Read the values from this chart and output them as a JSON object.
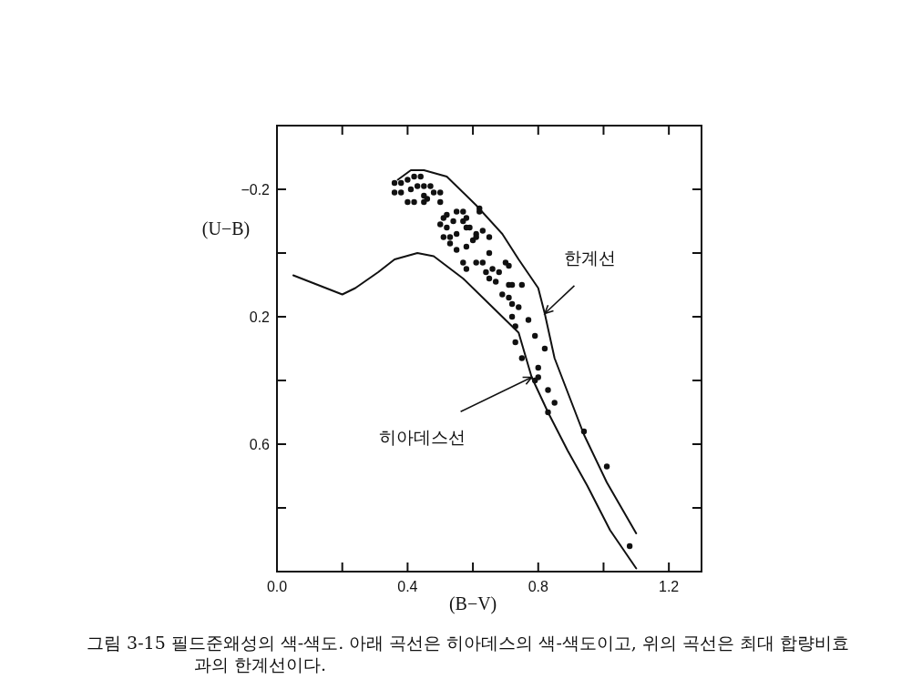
{
  "chart_data": {
    "type": "scatter",
    "xlabel": "(B−V)",
    "ylabel": "(U−B)",
    "xlim": [
      0,
      1.3
    ],
    "ylim": [
      1.0,
      -0.4
    ],
    "xticks": [
      {
        "value": 0,
        "label": "0.0"
      },
      {
        "value": 0.2,
        "label": null
      },
      0.4,
      {
        "value": 0.6,
        "label": null
      },
      0.8,
      {
        "value": 1.0,
        "label": null
      },
      1.2
    ],
    "yticks": [
      {
        "value": -0.2,
        "label": "−0.2"
      },
      {
        "value": 0,
        "label": null
      },
      0.2,
      {
        "value": 0.4,
        "label": null
      },
      0.6,
      {
        "value": 0.8,
        "label": null
      }
    ],
    "series": [
      {
        "type": "scatter",
        "marker": "circle",
        "color": "#111111",
        "x": [
          0.36,
          0.36,
          0.38,
          0.4,
          0.42,
          0.44,
          0.38,
          0.41,
          0.43,
          0.45,
          0.47,
          0.4,
          0.42,
          0.45,
          0.46,
          0.48,
          0.5,
          0.5,
          0.45,
          0.51,
          0.52,
          0.55,
          0.57,
          0.5,
          0.52,
          0.54,
          0.57,
          0.58,
          0.51,
          0.53,
          0.55,
          0.58,
          0.59,
          0.61,
          0.63,
          0.62,
          0.53,
          0.55,
          0.58,
          0.6,
          0.61,
          0.65,
          0.57,
          0.58,
          0.61,
          0.63,
          0.65,
          0.7,
          0.71,
          0.64,
          0.66,
          0.68,
          0.65,
          0.67,
          0.71,
          0.72,
          0.75,
          0.69,
          0.71,
          0.72,
          0.74,
          0.72,
          0.77,
          0.73,
          0.79,
          0.73,
          0.82,
          0.62,
          0.75,
          0.8,
          0.8,
          0.79,
          0.83,
          0.85,
          0.83,
          0.94,
          1.01,
          1.08
        ],
        "values": [
          -0.22,
          -0.19,
          -0.22,
          -0.23,
          -0.24,
          -0.24,
          -0.19,
          -0.2,
          -0.21,
          -0.21,
          -0.21,
          -0.16,
          -0.16,
          -0.16,
          -0.17,
          -0.19,
          -0.19,
          -0.16,
          -0.18,
          -0.11,
          -0.12,
          -0.13,
          -0.13,
          -0.09,
          -0.08,
          -0.1,
          -0.1,
          -0.11,
          -0.05,
          -0.05,
          -0.06,
          -0.08,
          -0.08,
          -0.06,
          -0.07,
          -0.13,
          -0.03,
          -0.01,
          -0.02,
          -0.04,
          -0.05,
          -0.05,
          0.03,
          0.05,
          0.03,
          0.03,
          0.0,
          0.03,
          0.04,
          0.06,
          0.05,
          0.06,
          0.08,
          0.09,
          0.1,
          0.1,
          0.1,
          0.13,
          0.14,
          0.16,
          0.17,
          0.2,
          0.21,
          0.23,
          0.26,
          0.28,
          0.3,
          -0.14,
          0.33,
          0.36,
          0.39,
          0.4,
          0.43,
          0.47,
          0.5,
          0.56,
          0.67,
          0.92
        ]
      },
      {
        "type": "line",
        "color": "#111111",
        "x": [
          0.05,
          0.1,
          0.15,
          0.2,
          0.24,
          0.31,
          0.36,
          0.43,
          0.48,
          0.57,
          0.65,
          0.74,
          0.78,
          0.83,
          0.89,
          0.95,
          1.02,
          1.1
        ],
        "values": [
          0.07,
          0.09,
          0.11,
          0.13,
          0.11,
          0.06,
          0.02,
          0.0,
          0.01,
          0.08,
          0.16,
          0.25,
          0.39,
          0.5,
          0.62,
          0.73,
          0.87,
          0.99
        ]
      },
      {
        "type": "line",
        "color": "#111111",
        "x": [
          0.37,
          0.41,
          0.45,
          0.52,
          0.61,
          0.69,
          0.74,
          0.8,
          0.82,
          0.85,
          0.94,
          1.01,
          1.1
        ],
        "values": [
          -0.23,
          -0.26,
          -0.26,
          -0.24,
          -0.15,
          -0.06,
          0.02,
          0.11,
          0.19,
          0.33,
          0.57,
          0.72,
          0.88
        ]
      }
    ],
    "annotations": [
      {
        "text": "한계선",
        "x": 0.82,
        "y": 0.19
      },
      {
        "text": "히아데스선",
        "x": 0.78,
        "y": 0.39
      },
      "그림 3-15 필드준왜성의 색-색도. 아래 곡선은 히아데스의 색-색도이고, 위의 곡선은 최대 합량비효과의 한계선이다."
    ]
  }
}
